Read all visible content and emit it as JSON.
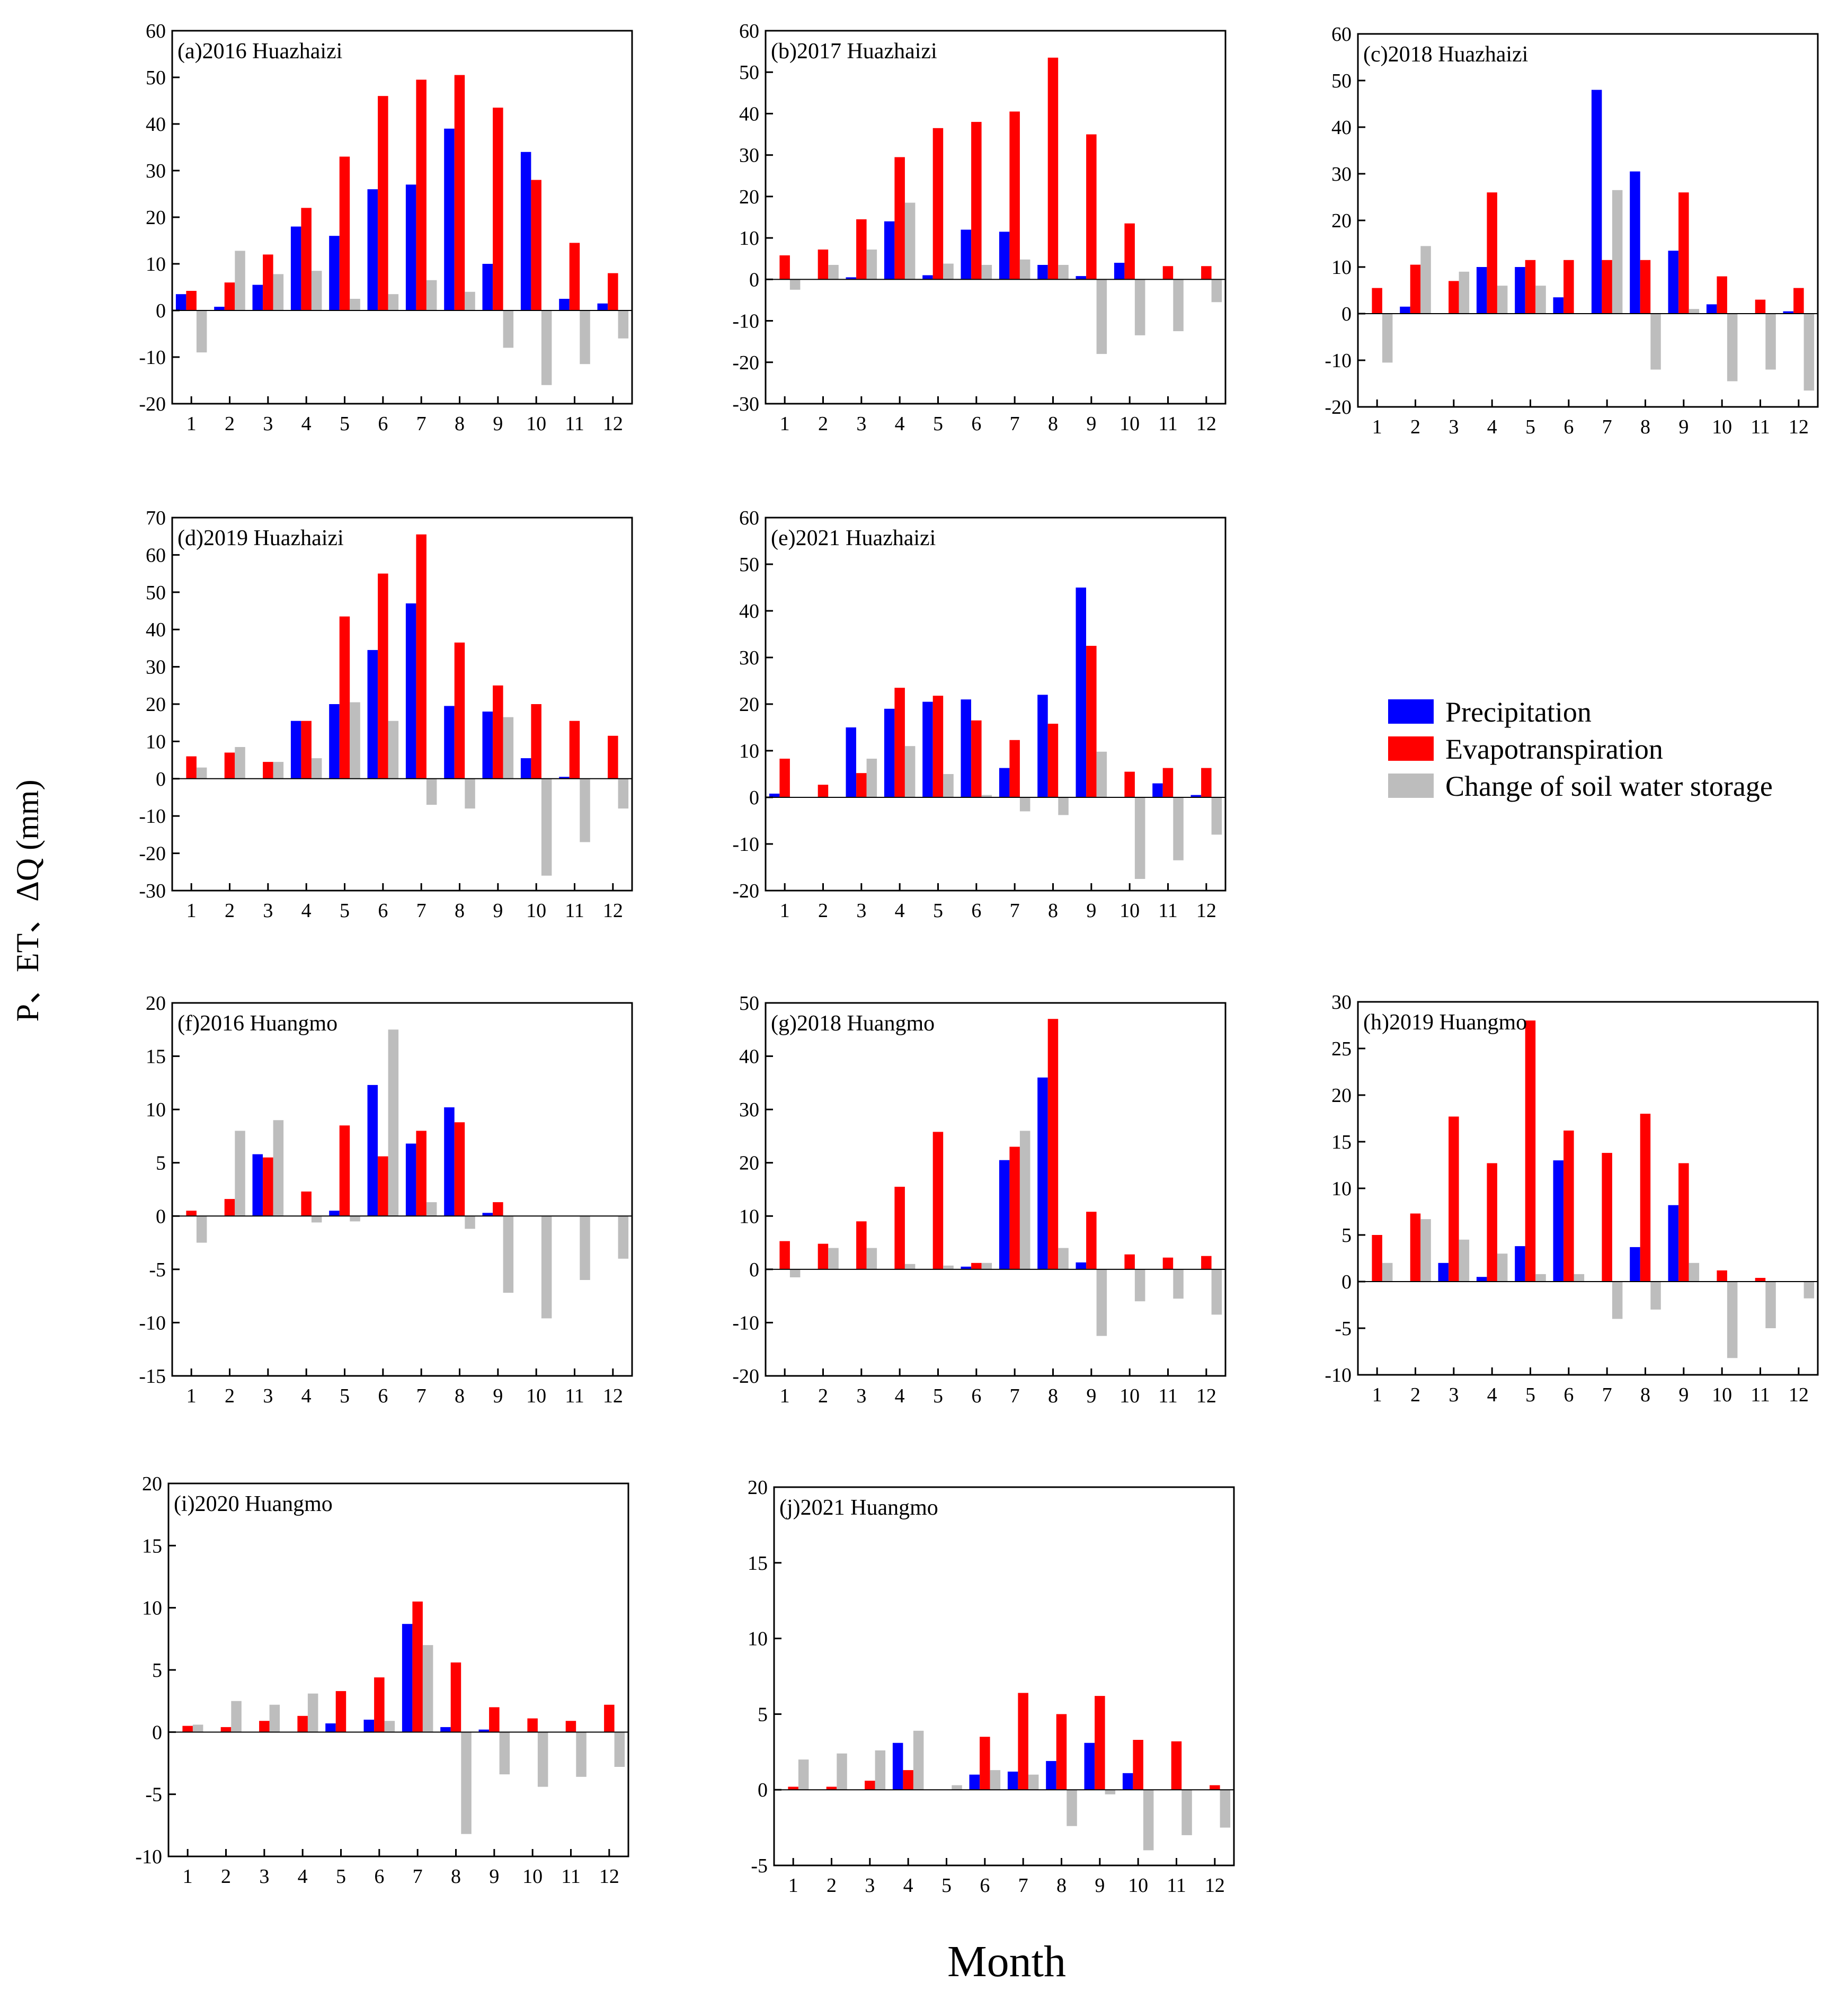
{
  "figure": {
    "ylabel": "P、ET、ΔQ (mm)",
    "xlabel": "Month"
  },
  "legend": {
    "items": [
      {
        "label": "Precipitation",
        "color": "#0000ff"
      },
      {
        "label": "Evapotranspiration",
        "color": "#ff0000"
      },
      {
        "label": "Change of soil water storage",
        "color": "#bdbdbd"
      }
    ]
  },
  "chart_data": [
    {
      "type": "bar",
      "title": "(a)2016 Huazhaizi",
      "categories": [
        "1",
        "2",
        "3",
        "4",
        "5",
        "6",
        "7",
        "8",
        "9",
        "10",
        "11",
        "12"
      ],
      "ylim": [
        -20,
        60
      ],
      "yticks": [
        -20,
        -10,
        0,
        10,
        20,
        30,
        40,
        50,
        60
      ],
      "series": [
        {
          "name": "Precipitation",
          "values": [
            3.5,
            0.8,
            5.5,
            18,
            16,
            26,
            27,
            39,
            10,
            34,
            2.5,
            1.5
          ]
        },
        {
          "name": "Evapotranspiration",
          "values": [
            4.2,
            6,
            12,
            22,
            33,
            46,
            49.5,
            50.5,
            43.5,
            28,
            14.5,
            8
          ]
        },
        {
          "name": "Change of soil water storage",
          "values": [
            -9,
            12.8,
            7.8,
            8.5,
            2.5,
            3.5,
            6.5,
            4,
            -8,
            -16,
            -11.5,
            -6
          ]
        }
      ]
    },
    {
      "type": "bar",
      "title": "(b)2017 Huazhaizi",
      "categories": [
        "1",
        "2",
        "3",
        "4",
        "5",
        "6",
        "7",
        "8",
        "9",
        "10",
        "11",
        "12"
      ],
      "ylim": [
        -30,
        60
      ],
      "yticks": [
        -30,
        -20,
        -10,
        0,
        10,
        20,
        30,
        40,
        50,
        60
      ],
      "series": [
        {
          "name": "Precipitation",
          "values": [
            0,
            0,
            0.5,
            14,
            1,
            12,
            11.5,
            3.5,
            0.8,
            4,
            0,
            0
          ]
        },
        {
          "name": "Evapotranspiration",
          "values": [
            5.8,
            7.2,
            14.5,
            29.5,
            36.5,
            38,
            40.5,
            53.5,
            35,
            13.5,
            3.2,
            3.2
          ]
        },
        {
          "name": "Change of soil water storage",
          "values": [
            -2.5,
            3.5,
            7.2,
            18.5,
            3.8,
            3.5,
            4.8,
            3.5,
            -18,
            -13.5,
            -12.5,
            -5.5
          ]
        }
      ]
    },
    {
      "type": "bar",
      "title": "(c)2018 Huazhaizi",
      "categories": [
        "1",
        "2",
        "3",
        "4",
        "5",
        "6",
        "7",
        "8",
        "9",
        "10",
        "11",
        "12"
      ],
      "ylim": [
        -20,
        60
      ],
      "yticks": [
        -20,
        -10,
        0,
        10,
        20,
        30,
        40,
        50,
        60
      ],
      "series": [
        {
          "name": "Precipitation",
          "values": [
            0,
            1.5,
            0,
            10,
            10,
            3.5,
            48,
            30.5,
            13.5,
            2,
            0,
            0.5
          ]
        },
        {
          "name": "Evapotranspiration",
          "values": [
            5.5,
            10.5,
            7,
            26,
            11.5,
            11.5,
            11.5,
            11.5,
            26,
            8,
            3,
            5.5
          ]
        },
        {
          "name": "Change of soil water storage",
          "values": [
            -10.5,
            14.5,
            9,
            6,
            6,
            0,
            26.5,
            -12,
            1,
            -14.5,
            -12,
            -16.5
          ]
        }
      ]
    },
    {
      "type": "bar",
      "title": "(d)2019 Huazhaizi",
      "categories": [
        "1",
        "2",
        "3",
        "4",
        "5",
        "6",
        "7",
        "8",
        "9",
        "10",
        "11",
        "12"
      ],
      "ylim": [
        -30,
        70
      ],
      "yticks": [
        -30,
        -20,
        -10,
        0,
        10,
        20,
        30,
        40,
        50,
        60,
        70
      ],
      "series": [
        {
          "name": "Precipitation",
          "values": [
            0,
            0,
            0,
            15.5,
            20,
            34.5,
            47,
            19.5,
            18,
            5.5,
            0.5,
            0
          ]
        },
        {
          "name": "Evapotranspiration",
          "values": [
            6,
            7,
            4.5,
            15.5,
            43.5,
            55,
            65.5,
            36.5,
            25,
            20,
            15.5,
            11.5
          ]
        },
        {
          "name": "Change of soil water storage",
          "values": [
            3,
            8.5,
            4.5,
            5.5,
            20.5,
            15.5,
            -7,
            -8,
            16.5,
            -26,
            -17,
            -8
          ]
        }
      ]
    },
    {
      "type": "bar",
      "title": "(e)2021 Huazhaizi",
      "categories": [
        "1",
        "2",
        "3",
        "4",
        "5",
        "6",
        "7",
        "8",
        "9",
        "10",
        "11",
        "12"
      ],
      "ylim": [
        -20,
        60
      ],
      "yticks": [
        -20,
        -10,
        0,
        10,
        20,
        30,
        40,
        50,
        60
      ],
      "series": [
        {
          "name": "Precipitation",
          "values": [
            0.8,
            0,
            15,
            19,
            20.5,
            21,
            6.3,
            22,
            45,
            0,
            3,
            0.5
          ]
        },
        {
          "name": "Evapotranspiration",
          "values": [
            8.3,
            2.7,
            5.2,
            23.5,
            21.8,
            16.5,
            12.3,
            15.8,
            32.5,
            5.5,
            6.3,
            6.3
          ]
        },
        {
          "name": "Change of soil water storage",
          "values": [
            0,
            0,
            8.3,
            11,
            5,
            0.5,
            -3,
            -3.8,
            9.8,
            -17.5,
            -13.5,
            -8
          ]
        }
      ]
    },
    {
      "type": "bar",
      "title": "(f)2016 Huangmo",
      "categories": [
        "1",
        "2",
        "3",
        "4",
        "5",
        "6",
        "7",
        "8",
        "9",
        "10",
        "11",
        "12"
      ],
      "ylim": [
        -15,
        20
      ],
      "yticks": [
        -15,
        -10,
        -5,
        0,
        5,
        10,
        15,
        20
      ],
      "series": [
        {
          "name": "Precipitation",
          "values": [
            0,
            0,
            5.8,
            0,
            0.5,
            12.3,
            6.8,
            10.2,
            0.3,
            0,
            0,
            0
          ]
        },
        {
          "name": "Evapotranspiration",
          "values": [
            0.5,
            1.6,
            5.5,
            2.3,
            8.5,
            5.6,
            8,
            8.8,
            1.3,
            0,
            0,
            0
          ]
        },
        {
          "name": "Change of soil water storage",
          "values": [
            -2.5,
            8,
            9,
            -0.6,
            -0.5,
            17.5,
            1.3,
            -1.2,
            -7.2,
            -9.6,
            -6,
            -4
          ]
        }
      ]
    },
    {
      "type": "bar",
      "title": "(g)2018 Huangmo",
      "categories": [
        "1",
        "2",
        "3",
        "4",
        "5",
        "6",
        "7",
        "8",
        "9",
        "10",
        "11",
        "12"
      ],
      "ylim": [
        -20,
        50
      ],
      "yticks": [
        -20,
        -10,
        0,
        10,
        20,
        30,
        40,
        50
      ],
      "series": [
        {
          "name": "Precipitation",
          "values": [
            0,
            0,
            0,
            0,
            0,
            0.5,
            20.5,
            36,
            1.3,
            0,
            0,
            0
          ]
        },
        {
          "name": "Evapotranspiration",
          "values": [
            5.3,
            4.8,
            9,
            15.5,
            25.8,
            1.2,
            23,
            47,
            10.8,
            2.8,
            2.2,
            2.5
          ]
        },
        {
          "name": "Change of soil water storage",
          "values": [
            -1.5,
            4,
            4,
            1,
            0.7,
            1.2,
            26,
            4,
            -12.5,
            -6,
            -5.5,
            -8.5
          ]
        }
      ]
    },
    {
      "type": "bar",
      "title": "(h)2019 Huangmo",
      "categories": [
        "1",
        "2",
        "3",
        "4",
        "5",
        "6",
        "7",
        "8",
        "9",
        "10",
        "11",
        "12"
      ],
      "ylim": [
        -10,
        30
      ],
      "yticks": [
        -10,
        -5,
        0,
        5,
        10,
        15,
        20,
        25,
        30
      ],
      "series": [
        {
          "name": "Precipitation",
          "values": [
            0,
            0,
            2,
            0.5,
            3.8,
            13,
            0,
            3.7,
            8.2,
            0,
            0,
            0
          ]
        },
        {
          "name": "Evapotranspiration",
          "values": [
            5,
            7.3,
            17.7,
            12.7,
            28,
            16.2,
            13.8,
            18,
            12.7,
            1.2,
            0.4,
            0
          ]
        },
        {
          "name": "Change of soil water storage",
          "values": [
            2,
            6.7,
            4.5,
            3,
            0.8,
            0.8,
            -4,
            -3,
            2,
            -8.2,
            -5,
            -1.8
          ]
        }
      ]
    },
    {
      "type": "bar",
      "title": "(i)2020 Huangmo",
      "categories": [
        "1",
        "2",
        "3",
        "4",
        "5",
        "6",
        "7",
        "8",
        "9",
        "10",
        "11",
        "12"
      ],
      "ylim": [
        -10,
        20
      ],
      "yticks": [
        -10,
        -5,
        0,
        5,
        10,
        15,
        20
      ],
      "series": [
        {
          "name": "Precipitation",
          "values": [
            0,
            0,
            0,
            0,
            0.7,
            1,
            8.7,
            0.4,
            0.2,
            0,
            0,
            0
          ]
        },
        {
          "name": "Evapotranspiration",
          "values": [
            0.5,
            0.4,
            0.9,
            1.3,
            3.3,
            4.4,
            10.5,
            5.6,
            2,
            1.1,
            0.9,
            2.2
          ]
        },
        {
          "name": "Change of soil water storage",
          "values": [
            0.6,
            2.5,
            2.2,
            3.1,
            0,
            0.9,
            7,
            -8.2,
            -3.4,
            -4.4,
            -3.6,
            -2.8
          ]
        }
      ]
    },
    {
      "type": "bar",
      "title": "(j)2021 Huangmo",
      "categories": [
        "1",
        "2",
        "3",
        "4",
        "5",
        "6",
        "7",
        "8",
        "9",
        "10",
        "11",
        "12"
      ],
      "ylim": [
        -5,
        20
      ],
      "yticks": [
        -5,
        0,
        5,
        10,
        15,
        20
      ],
      "series": [
        {
          "name": "Precipitation",
          "values": [
            0,
            0,
            0,
            3.1,
            0,
            1,
            1.2,
            1.9,
            3.1,
            1.1,
            0,
            0
          ]
        },
        {
          "name": "Evapotranspiration",
          "values": [
            0.2,
            0.2,
            0.6,
            1.3,
            0,
            3.5,
            6.4,
            5,
            6.2,
            3.3,
            3.2,
            0.3
          ]
        },
        {
          "name": "Change of soil water storage",
          "values": [
            2,
            2.4,
            2.6,
            3.9,
            0.3,
            1.3,
            1,
            -2.4,
            -0.3,
            -4,
            -3,
            -2.5
          ]
        }
      ]
    }
  ]
}
